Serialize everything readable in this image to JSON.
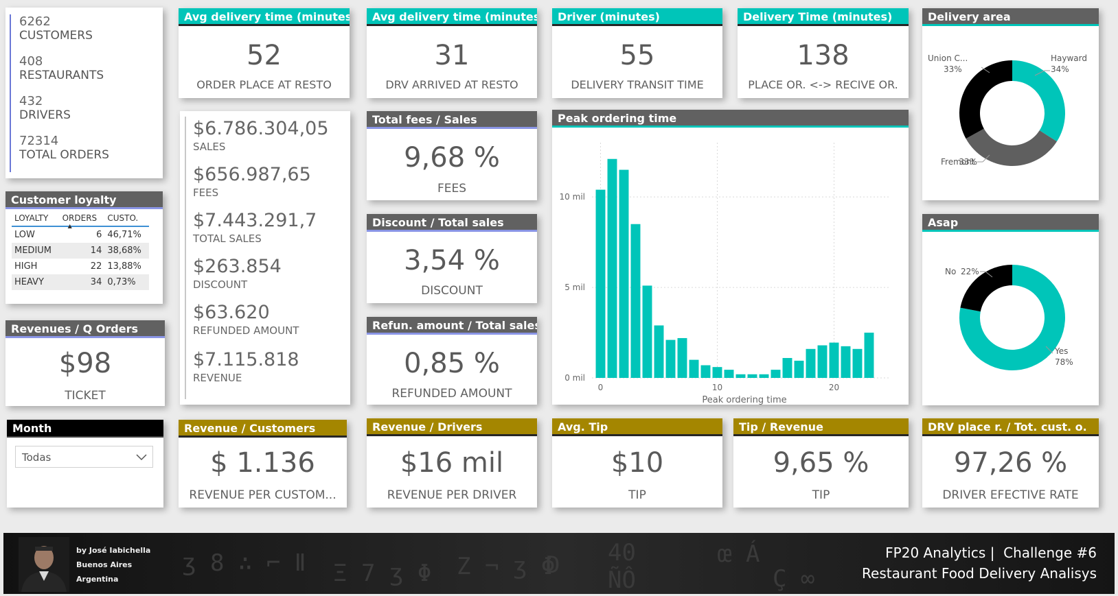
{
  "summary": {
    "items": [
      {
        "value": "6262",
        "label": "CUSTOMERS"
      },
      {
        "value": "408",
        "label": "RESTAURANTS"
      },
      {
        "value": "432",
        "label": "DRIVERS"
      },
      {
        "value": "72314",
        "label": "TOTAL ORDERS"
      }
    ]
  },
  "kpi_top": [
    {
      "title": "Avg delivery time (minutes)",
      "value": "52",
      "label": "ORDER PLACE AT RESTO"
    },
    {
      "title": "Avg delivery time (minutes)",
      "value": "31",
      "label": "DRV ARRIVED AT RESTO"
    },
    {
      "title": "Driver (minutes)",
      "value": "55",
      "label": "DELIVERY TRANSIT TIME"
    },
    {
      "title": "Delivery Time (minutes)",
      "value": "138",
      "label": "PLACE OR. <-> RECIVE OR."
    }
  ],
  "delivery_area": {
    "title": "Delivery area",
    "slices": [
      {
        "name": "Hayward",
        "pct_label": "34%",
        "value": 34,
        "color": "#00c5b9"
      },
      {
        "name": "Fremont",
        "pct_label": "33%",
        "value": 33,
        "color": "#5f5f5f"
      },
      {
        "name": "Union C...",
        "pct_label": "33%",
        "value": 33,
        "color": "#000000"
      }
    ]
  },
  "loyalty": {
    "title": "Customer loyalty",
    "columns": [
      "LOYALTY",
      "ORDERS",
      "CUSTO."
    ],
    "rows": [
      [
        "LOW",
        "6",
        "46,71%"
      ],
      [
        "MEDIUM",
        "14",
        "38,68%"
      ],
      [
        "HIGH",
        "22",
        "13,88%"
      ],
      [
        "HEAVY",
        "34",
        "0,73%"
      ]
    ]
  },
  "financials": [
    {
      "value": "$6.786.304,05",
      "label": "SALES"
    },
    {
      "value": "$656.987,65",
      "label": "FEES"
    },
    {
      "value": "$7.443.291,7",
      "label": "TOTAL SALES"
    },
    {
      "value": "$263.854",
      "label": "DISCOUNT"
    },
    {
      "value": "$63.620",
      "label": "REFUNDED AMOUNT"
    },
    {
      "value": "$7.115.818",
      "label": "REVENUE"
    }
  ],
  "ratios": [
    {
      "title": "Total fees / Sales",
      "value": "9,68 %",
      "label": "FEES"
    },
    {
      "title": "Discount / Total sales",
      "value": "3,54 %",
      "label": "DISCOUNT"
    },
    {
      "title": "Refun. amount / Total sales",
      "value": "0,85 %",
      "label": "REFUNDED AMOUNT"
    }
  ],
  "peak": {
    "title": "Peak ordering time"
  },
  "chart_data": {
    "type": "bar",
    "x": [
      0,
      1,
      2,
      3,
      4,
      5,
      6,
      7,
      8,
      9,
      10,
      11,
      12,
      13,
      14,
      15,
      16,
      17,
      18,
      19,
      20,
      21,
      22,
      23
    ],
    "values": [
      10.4,
      12.1,
      11.5,
      8.5,
      5.1,
      2.9,
      2.1,
      2.2,
      1.0,
      0.7,
      0.6,
      0.45,
      0.2,
      0.2,
      0.2,
      0.45,
      1.1,
      0.95,
      1.6,
      1.8,
      1.95,
      1.75,
      1.6,
      2.5
    ],
    "title": "",
    "xlabel": "Peak ordering time",
    "ylabel": "",
    "ylim": [
      0,
      13
    ],
    "yticks": [
      {
        "v": 0,
        "label": "0 mil"
      },
      {
        "v": 5,
        "label": "5 mil"
      },
      {
        "v": 10,
        "label": "10 mil"
      }
    ],
    "xticks": [
      {
        "v": 0,
        "label": "0"
      },
      {
        "v": 10,
        "label": "10"
      },
      {
        "v": 20,
        "label": "20"
      }
    ],
    "grid": true,
    "color": "#00c5b9"
  },
  "revenue_q": {
    "title": "Revenues / Q Orders",
    "value": "$98",
    "label": "TICKET"
  },
  "asap": {
    "title": "Asap",
    "slices": [
      {
        "name": "Yes",
        "pct_label": "78%",
        "value": 78,
        "color": "#00c5b9"
      },
      {
        "name": "No",
        "pct_label": "22%",
        "value": 22,
        "color": "#000000"
      }
    ]
  },
  "month": {
    "title": "Month",
    "selected": "Todas"
  },
  "kpi_bottom": [
    {
      "title": "Revenue / Customers",
      "value": "$ 1.136",
      "label": "REVENUE PER CUSTOM..."
    },
    {
      "title": "Revenue / Drivers",
      "value": "$16 mil",
      "label": "REVENUE PER DRIVER"
    },
    {
      "title": "Avg. Tip",
      "value": "$10",
      "label": "TIP"
    },
    {
      "title": "Tip / Revenue",
      "value": "9,65 %",
      "label": "TIP"
    },
    {
      "title": "DRV place r. / Tot. cust. o.",
      "value": "97,26 %",
      "label": "DRIVER EFECTIVE RATE"
    }
  ],
  "footer": {
    "author": "by José Iabichella",
    "city": "Buenos Aires",
    "country": "Argentina",
    "line1": "FP20 Analytics |  Challenge #6",
    "line2": "Restaurant Food Delivery Analisys"
  }
}
